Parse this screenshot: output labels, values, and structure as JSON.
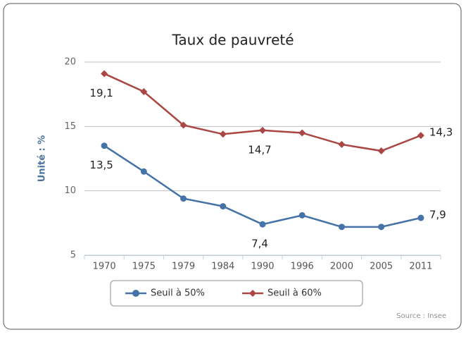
{
  "chart_data": {
    "type": "line",
    "title": "Taux de pauvreté",
    "y_label": "Unité : %",
    "source": "Source : Insee",
    "categories": [
      "1970",
      "1975",
      "1979",
      "1984",
      "1990",
      "1996",
      "2000",
      "2005",
      "2011"
    ],
    "series": [
      {
        "name": "Seuil à 50%",
        "color": "#4572a7",
        "marker": "circle",
        "values": [
          13.5,
          11.5,
          9.4,
          8.8,
          7.4,
          8.1,
          7.2,
          7.2,
          7.9
        ],
        "value_labels": [
          "13,5",
          null,
          null,
          null,
          "7,4",
          null,
          null,
          null,
          "7,9"
        ]
      },
      {
        "name": "Seuil à 60%",
        "color": "#aa4643",
        "marker": "diamond",
        "values": [
          19.1,
          17.7,
          15.1,
          14.4,
          14.7,
          14.5,
          13.6,
          13.1,
          14.3
        ],
        "value_labels": [
          "19,1",
          null,
          null,
          null,
          "14,7",
          null,
          null,
          null,
          "14,3"
        ]
      }
    ],
    "ylim": [
      5,
      20
    ],
    "yticks": [
      5,
      10,
      15,
      20
    ],
    "grid": true,
    "legend": "bottom"
  }
}
